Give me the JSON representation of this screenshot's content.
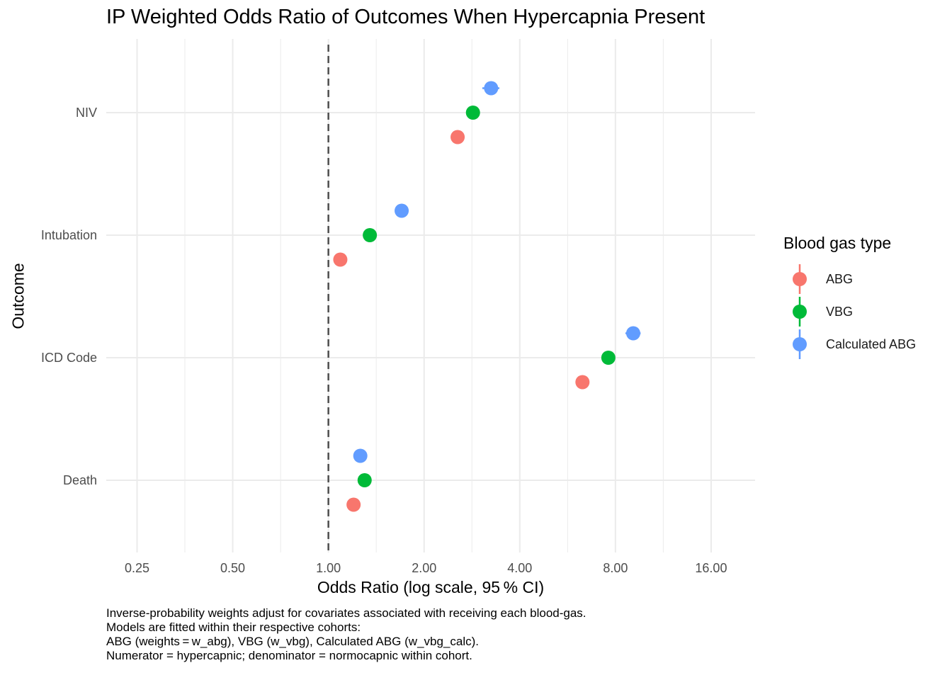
{
  "chart_data": {
    "type": "scatter",
    "title": "IP Weighted Odds Ratio of Outcomes When Hypercapnia Present",
    "xlabel": "Odds Ratio (log scale, 95 % CI)",
    "ylabel": "Outcome",
    "x_scale": "log2",
    "xlim": [
      0.2,
      22
    ],
    "x_ticks": [
      0.25,
      0.5,
      1,
      2,
      4,
      8,
      16
    ],
    "x_tick_labels": [
      "0.25",
      "0.50",
      "1.00",
      "2.00",
      "4.00",
      "8.00",
      "16.00"
    ],
    "categories": [
      "NIV",
      "Intubation",
      "ICD Code",
      "Death"
    ],
    "reference_line": 1,
    "legend_title": "Blood gas type",
    "legend_position": "right",
    "grid": true,
    "series": [
      {
        "name": "ABG",
        "color": "#F8766D",
        "values": [
          {
            "category": "NIV",
            "or": 2.55,
            "lo": 2.52,
            "hi": 2.58
          },
          {
            "category": "Intubation",
            "or": 1.09,
            "lo": 1.07,
            "hi": 1.11
          },
          {
            "category": "ICD Code",
            "or": 6.3,
            "lo": 6.22,
            "hi": 6.38
          },
          {
            "category": "Death",
            "or": 1.2,
            "lo": 1.18,
            "hi": 1.22
          }
        ]
      },
      {
        "name": "VBG",
        "color": "#00BA38",
        "values": [
          {
            "category": "NIV",
            "or": 2.85,
            "lo": 2.82,
            "hi": 2.88
          },
          {
            "category": "Intubation",
            "or": 1.35,
            "lo": 1.33,
            "hi": 1.37
          },
          {
            "category": "ICD Code",
            "or": 7.6,
            "lo": 7.5,
            "hi": 7.7
          },
          {
            "category": "Death",
            "or": 1.3,
            "lo": 1.28,
            "hi": 1.32
          }
        ]
      },
      {
        "name": "Calculated ABG",
        "color": "#619CFF",
        "values": [
          {
            "category": "NIV",
            "or": 3.25,
            "lo": 3.05,
            "hi": 3.45
          },
          {
            "category": "Intubation",
            "or": 1.7,
            "lo": 1.68,
            "hi": 1.72
          },
          {
            "category": "ICD Code",
            "or": 9.1,
            "lo": 8.6,
            "hi": 9.6
          },
          {
            "category": "Death",
            "or": 1.26,
            "lo": 1.24,
            "hi": 1.28
          }
        ]
      }
    ]
  },
  "caption": [
    "Inverse‑probability weights adjust for covariates associated with receiving each blood‑gas.",
    "Models are fitted within their respective cohorts:",
    "ABG (weights = w_abg), VBG (w_vbg), Calculated ABG (w_vbg_calc).",
    "Numerator = hypercapnic; denominator = normocapnic within cohort."
  ]
}
